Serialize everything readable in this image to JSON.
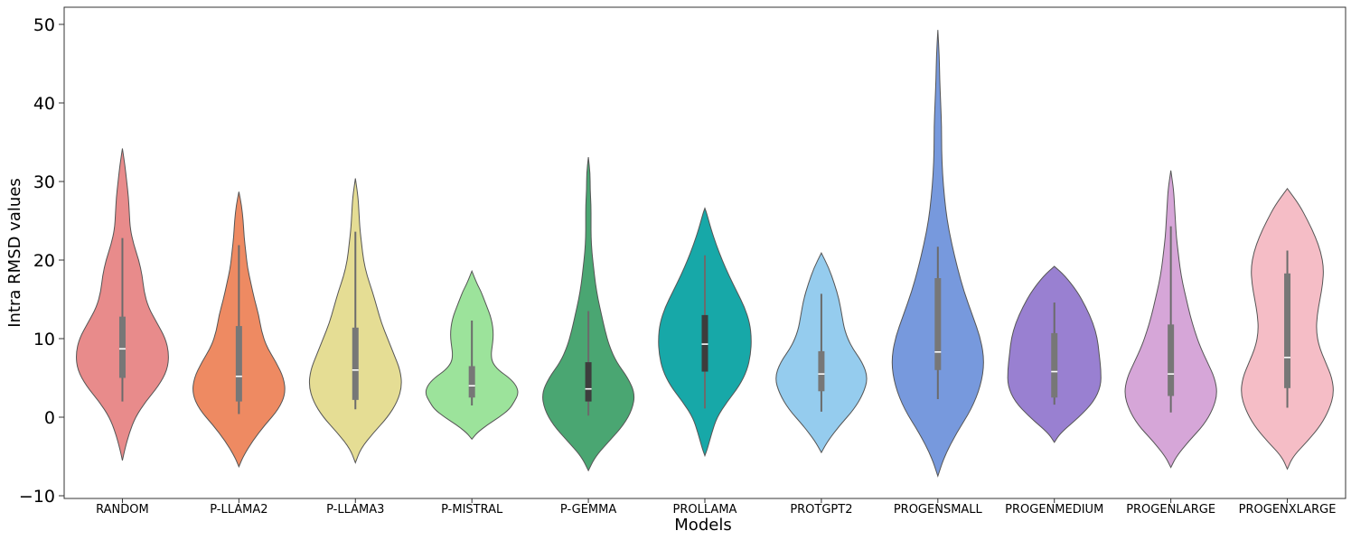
{
  "chart_data": {
    "type": "violin",
    "title": "",
    "xlabel": "Models",
    "ylabel": "Intra RMSD values",
    "ylim": [
      -10,
      52
    ],
    "yticks": [
      -10,
      0,
      10,
      20,
      30,
      40,
      50
    ],
    "ytick_labels": [
      "−10",
      "0",
      "10",
      "20",
      "30",
      "40",
      "50"
    ],
    "grid": false,
    "categories": [
      "RANDOM",
      "P-LLAMA2",
      "P-LLAMA3",
      "P-MISTRAL",
      "P-GEMMA",
      "PROLLAMA",
      "PROTGPT2",
      "PROGENSMALL",
      "PROGENMEDIUM",
      "PROGENLARGE",
      "PROGENXLARGE"
    ],
    "series": [
      {
        "category": "RANDOM",
        "color": "#E88B8B",
        "min": -5.5,
        "max": 34.2,
        "whisker_low": 2.0,
        "whisker_high": 22.8,
        "q1": 5.0,
        "median": 8.7,
        "q3": 12.8,
        "profile": [
          [
            -5.5,
            0
          ],
          [
            -4,
            0.03
          ],
          [
            -2,
            0.08
          ],
          [
            0,
            0.15
          ],
          [
            2,
            0.27
          ],
          [
            4,
            0.42
          ],
          [
            6,
            0.52
          ],
          [
            8,
            0.54
          ],
          [
            10,
            0.5
          ],
          [
            12,
            0.4
          ],
          [
            14,
            0.3
          ],
          [
            16,
            0.25
          ],
          [
            18,
            0.23
          ],
          [
            20,
            0.19
          ],
          [
            22,
            0.13
          ],
          [
            24,
            0.09
          ],
          [
            26,
            0.08
          ],
          [
            28,
            0.07
          ],
          [
            30,
            0.05
          ],
          [
            32,
            0.03
          ],
          [
            34.2,
            0
          ]
        ]
      },
      {
        "category": "P-LLAMA2",
        "color": "#EE8A62",
        "min": -6.3,
        "max": 28.7,
        "whisker_low": 0.4,
        "whisker_high": 21.9,
        "q1": 2.0,
        "median": 5.2,
        "q3": 11.6,
        "profile": [
          [
            -6.3,
            0
          ],
          [
            -5,
            0.05
          ],
          [
            -3,
            0.16
          ],
          [
            -1,
            0.3
          ],
          [
            1,
            0.46
          ],
          [
            3,
            0.54
          ],
          [
            5,
            0.52
          ],
          [
            7,
            0.43
          ],
          [
            9,
            0.32
          ],
          [
            11,
            0.26
          ],
          [
            13,
            0.23
          ],
          [
            15,
            0.18
          ],
          [
            17,
            0.14
          ],
          [
            19,
            0.1
          ],
          [
            21,
            0.08
          ],
          [
            23,
            0.06
          ],
          [
            25,
            0.05
          ],
          [
            27,
            0.03
          ],
          [
            28.7,
            0
          ]
        ]
      },
      {
        "category": "P-LLAMA3",
        "color": "#E5DD94",
        "min": -5.8,
        "max": 30.4,
        "whisker_low": 1.0,
        "whisker_high": 23.6,
        "q1": 2.2,
        "median": 6.0,
        "q3": 11.4,
        "profile": [
          [
            -5.8,
            0
          ],
          [
            -4,
            0.06
          ],
          [
            -2,
            0.2
          ],
          [
            0,
            0.36
          ],
          [
            2,
            0.47
          ],
          [
            4,
            0.52
          ],
          [
            6,
            0.5
          ],
          [
            8,
            0.43
          ],
          [
            10,
            0.36
          ],
          [
            12,
            0.29
          ],
          [
            14,
            0.24
          ],
          [
            16,
            0.19
          ],
          [
            18,
            0.13
          ],
          [
            20,
            0.09
          ],
          [
            22,
            0.07
          ],
          [
            24,
            0.05
          ],
          [
            26,
            0.04
          ],
          [
            28,
            0.03
          ],
          [
            30.4,
            0
          ]
        ]
      },
      {
        "category": "P-MISTRAL",
        "color": "#9CE39B",
        "min": -2.8,
        "max": 18.6,
        "whisker_low": 1.5,
        "whisker_high": 12.3,
        "q1": 2.5,
        "median": 4.0,
        "q3": 6.5,
        "profile": [
          [
            -2.8,
            0
          ],
          [
            -2,
            0.05
          ],
          [
            -1,
            0.15
          ],
          [
            0,
            0.27
          ],
          [
            1,
            0.37
          ],
          [
            2,
            0.42
          ],
          [
            3,
            0.46
          ],
          [
            4,
            0.44
          ],
          [
            5,
            0.37
          ],
          [
            6,
            0.26
          ],
          [
            7,
            0.2
          ],
          [
            8,
            0.19
          ],
          [
            9,
            0.2
          ],
          [
            10,
            0.21
          ],
          [
            11,
            0.21
          ],
          [
            12,
            0.2
          ],
          [
            13,
            0.18
          ],
          [
            14,
            0.15
          ],
          [
            15,
            0.12
          ],
          [
            16,
            0.09
          ],
          [
            17,
            0.05
          ],
          [
            18.6,
            0
          ]
        ]
      },
      {
        "category": "P-GEMMA",
        "color": "#4AA672",
        "min": -6.8,
        "max": 33.1,
        "whisker_low": 0.2,
        "whisker_high": 13.5,
        "q1": 2.0,
        "median": 3.6,
        "q3": 7.0,
        "profile": [
          [
            -6.8,
            0
          ],
          [
            -5,
            0.08
          ],
          [
            -3,
            0.24
          ],
          [
            -1,
            0.4
          ],
          [
            1,
            0.5
          ],
          [
            3,
            0.53
          ],
          [
            5,
            0.45
          ],
          [
            7,
            0.32
          ],
          [
            9,
            0.24
          ],
          [
            11,
            0.19
          ],
          [
            13,
            0.15
          ],
          [
            15,
            0.11
          ],
          [
            17,
            0.08
          ],
          [
            19,
            0.06
          ],
          [
            21,
            0.04
          ],
          [
            23,
            0.03
          ],
          [
            25,
            0.03
          ],
          [
            27,
            0.03
          ],
          [
            29,
            0.02
          ],
          [
            31,
            0.02
          ],
          [
            33.1,
            0
          ]
        ]
      },
      {
        "category": "PROLLAMA",
        "color": "#17A8A8",
        "min": -4.9,
        "max": 26.6,
        "whisker_low": 1.1,
        "whisker_high": 20.6,
        "q1": 5.8,
        "median": 9.3,
        "q3": 13.0,
        "profile": [
          [
            -4.9,
            0
          ],
          [
            -4,
            0.03
          ],
          [
            -2,
            0.08
          ],
          [
            0,
            0.14
          ],
          [
            2,
            0.26
          ],
          [
            4,
            0.4
          ],
          [
            6,
            0.49
          ],
          [
            8,
            0.53
          ],
          [
            10,
            0.54
          ],
          [
            12,
            0.52
          ],
          [
            14,
            0.46
          ],
          [
            16,
            0.37
          ],
          [
            18,
            0.28
          ],
          [
            20,
            0.2
          ],
          [
            22,
            0.13
          ],
          [
            24,
            0.07
          ],
          [
            26,
            0.02
          ],
          [
            26.6,
            0
          ]
        ]
      },
      {
        "category": "PROTGPT2",
        "color": "#95CCEE",
        "min": -4.5,
        "max": 20.9,
        "whisker_low": 0.7,
        "whisker_high": 15.7,
        "q1": 3.3,
        "median": 5.5,
        "q3": 8.4,
        "profile": [
          [
            -4.5,
            0
          ],
          [
            -3,
            0.07
          ],
          [
            -1,
            0.2
          ],
          [
            1,
            0.35
          ],
          [
            3,
            0.45
          ],
          [
            5,
            0.5
          ],
          [
            7,
            0.44
          ],
          [
            9,
            0.32
          ],
          [
            11,
            0.25
          ],
          [
            13,
            0.22
          ],
          [
            15,
            0.19
          ],
          [
            17,
            0.14
          ],
          [
            19,
            0.08
          ],
          [
            20.9,
            0
          ]
        ]
      },
      {
        "category": "PROGENSMALL",
        "color": "#7799DD",
        "min": -7.5,
        "max": 49.3,
        "whisker_low": 2.3,
        "whisker_high": 21.7,
        "q1": 6.0,
        "median": 8.3,
        "q3": 17.7,
        "profile": [
          [
            -7.5,
            0
          ],
          [
            -5,
            0.07
          ],
          [
            -2,
            0.2
          ],
          [
            1,
            0.36
          ],
          [
            4,
            0.46
          ],
          [
            7,
            0.5
          ],
          [
            10,
            0.46
          ],
          [
            13,
            0.37
          ],
          [
            16,
            0.28
          ],
          [
            19,
            0.21
          ],
          [
            22,
            0.15
          ],
          [
            25,
            0.1
          ],
          [
            28,
            0.07
          ],
          [
            31,
            0.05
          ],
          [
            34,
            0.04
          ],
          [
            37,
            0.04
          ],
          [
            40,
            0.03
          ],
          [
            43,
            0.02
          ],
          [
            46,
            0.015
          ],
          [
            49.3,
            0
          ]
        ]
      },
      {
        "category": "PROGENMEDIUM",
        "color": "#9980D1",
        "min": -3.2,
        "max": 19.2,
        "whisker_low": 1.6,
        "whisker_high": 14.6,
        "q1": 2.5,
        "median": 5.8,
        "q3": 10.7,
        "profile": [
          [
            -3.2,
            0
          ],
          [
            -2,
            0.07
          ],
          [
            0,
            0.28
          ],
          [
            2,
            0.45
          ],
          [
            4,
            0.53
          ],
          [
            6,
            0.53
          ],
          [
            8,
            0.51
          ],
          [
            10,
            0.49
          ],
          [
            12,
            0.44
          ],
          [
            14,
            0.36
          ],
          [
            16,
            0.26
          ],
          [
            18,
            0.12
          ],
          [
            19.2,
            0
          ]
        ]
      },
      {
        "category": "PROGENLARGE",
        "color": "#D6A6D8",
        "min": -6.4,
        "max": 31.4,
        "whisker_low": 0.6,
        "whisker_high": 24.3,
        "q1": 2.7,
        "median": 5.5,
        "q3": 11.8,
        "profile": [
          [
            -6.4,
            0
          ],
          [
            -5,
            0.06
          ],
          [
            -3,
            0.2
          ],
          [
            -1,
            0.36
          ],
          [
            1,
            0.46
          ],
          [
            3,
            0.51
          ],
          [
            5,
            0.48
          ],
          [
            7,
            0.4
          ],
          [
            9,
            0.32
          ],
          [
            11,
            0.26
          ],
          [
            13,
            0.21
          ],
          [
            15,
            0.17
          ],
          [
            17,
            0.13
          ],
          [
            19,
            0.1
          ],
          [
            21,
            0.08
          ],
          [
            23,
            0.06
          ],
          [
            25,
            0.05
          ],
          [
            27,
            0.04
          ],
          [
            29,
            0.03
          ],
          [
            31.4,
            0
          ]
        ]
      },
      {
        "category": "PROGENXLARGE",
        "color": "#F5BDC6",
        "min": -6.6,
        "max": 29.1,
        "whisker_low": 1.2,
        "whisker_high": 21.2,
        "q1": 3.7,
        "median": 7.6,
        "q3": 18.3,
        "profile": [
          [
            -6.6,
            0
          ],
          [
            -5,
            0.06
          ],
          [
            -3,
            0.22
          ],
          [
            -1,
            0.36
          ],
          [
            1,
            0.45
          ],
          [
            3,
            0.5
          ],
          [
            5,
            0.48
          ],
          [
            7,
            0.41
          ],
          [
            9,
            0.34
          ],
          [
            11,
            0.31
          ],
          [
            13,
            0.32
          ],
          [
            15,
            0.35
          ],
          [
            17,
            0.38
          ],
          [
            19,
            0.39
          ],
          [
            21,
            0.36
          ],
          [
            23,
            0.3
          ],
          [
            25,
            0.22
          ],
          [
            27,
            0.13
          ],
          [
            29.1,
            0
          ]
        ]
      }
    ]
  }
}
